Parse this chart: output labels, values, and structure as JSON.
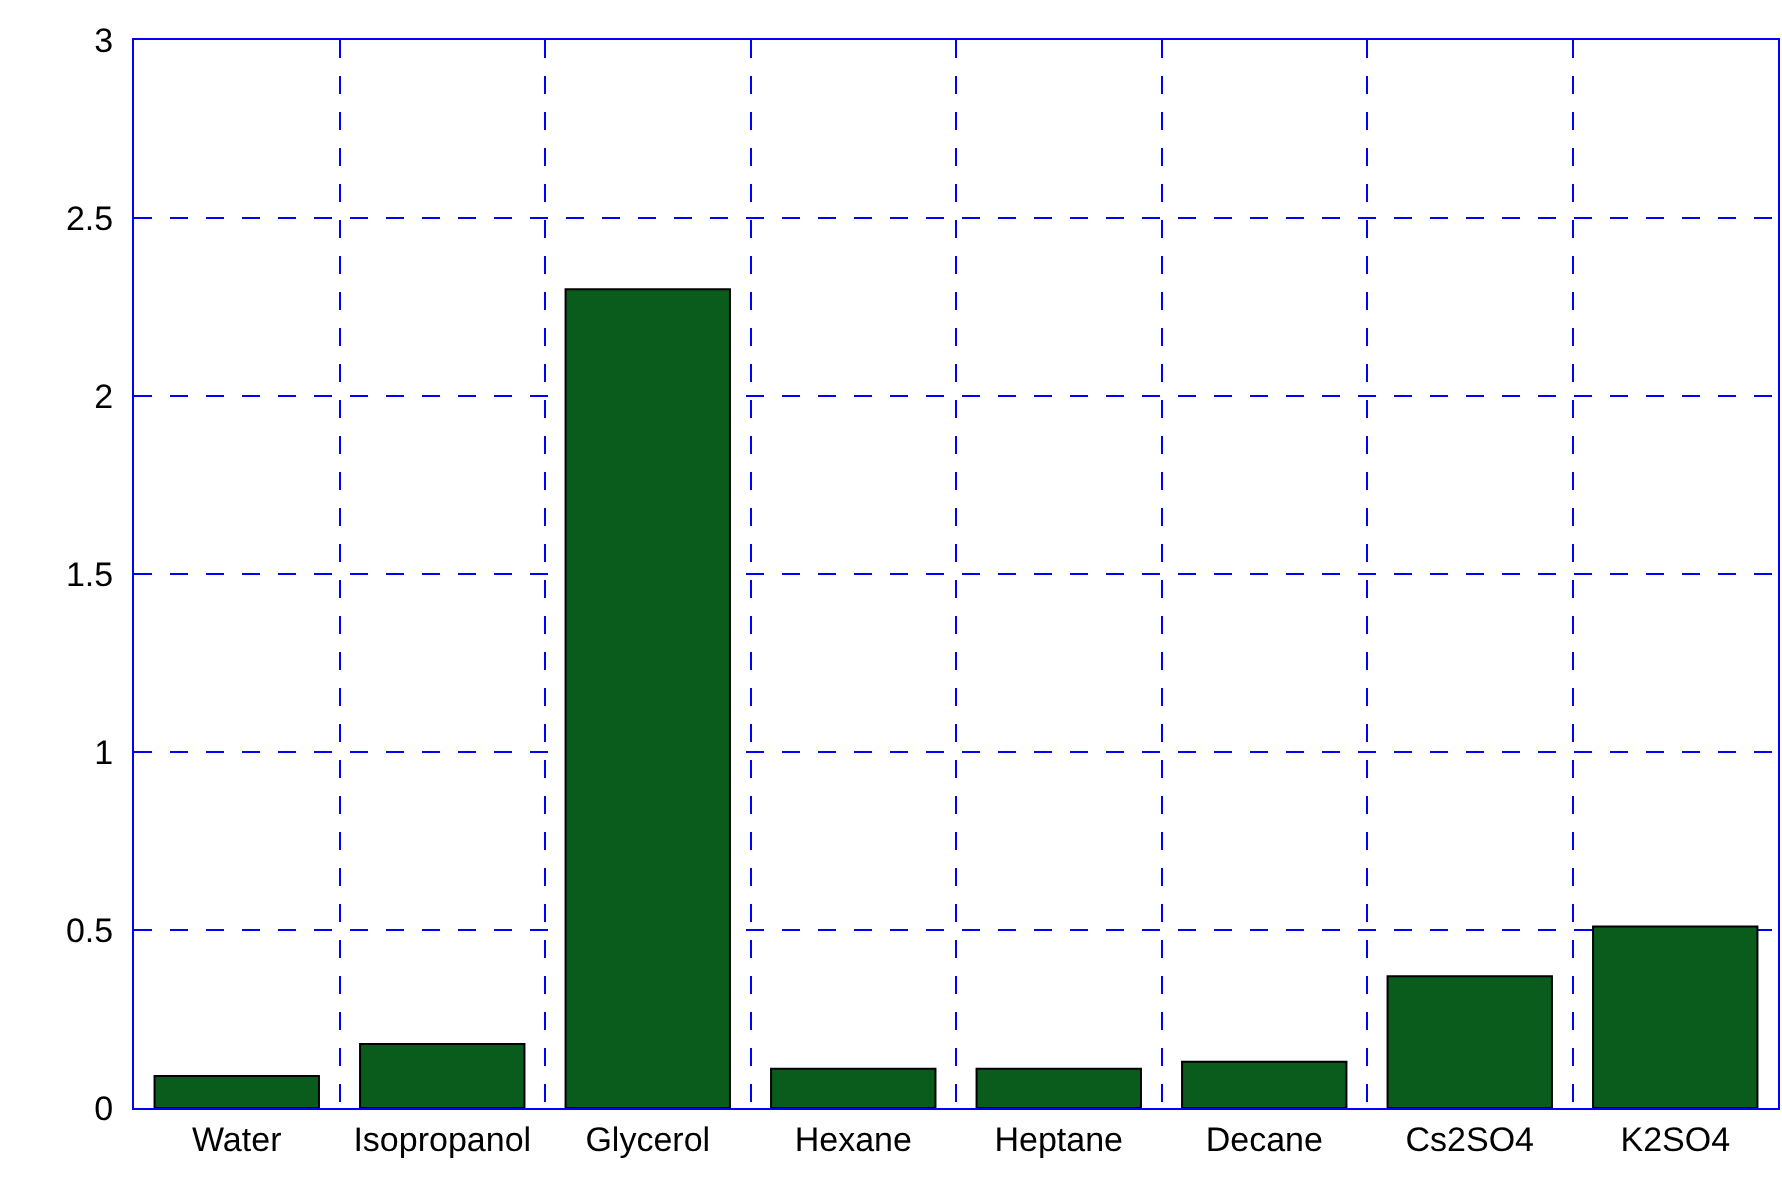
{
  "chart_data": {
    "type": "bar",
    "categories": [
      "Water",
      "Isopropanol",
      "Glycerol",
      "Hexane",
      "Heptane",
      "Decane",
      "Cs2SO4",
      "K2SO4"
    ],
    "values": [
      0.09,
      0.18,
      2.3,
      0.11,
      0.11,
      0.13,
      0.37,
      0.51
    ],
    "color": "#0a5c1c",
    "ylim": [
      0,
      3
    ],
    "yticks": [
      0,
      0.5,
      1,
      1.5,
      2,
      2.5,
      3
    ],
    "grid": true
  }
}
